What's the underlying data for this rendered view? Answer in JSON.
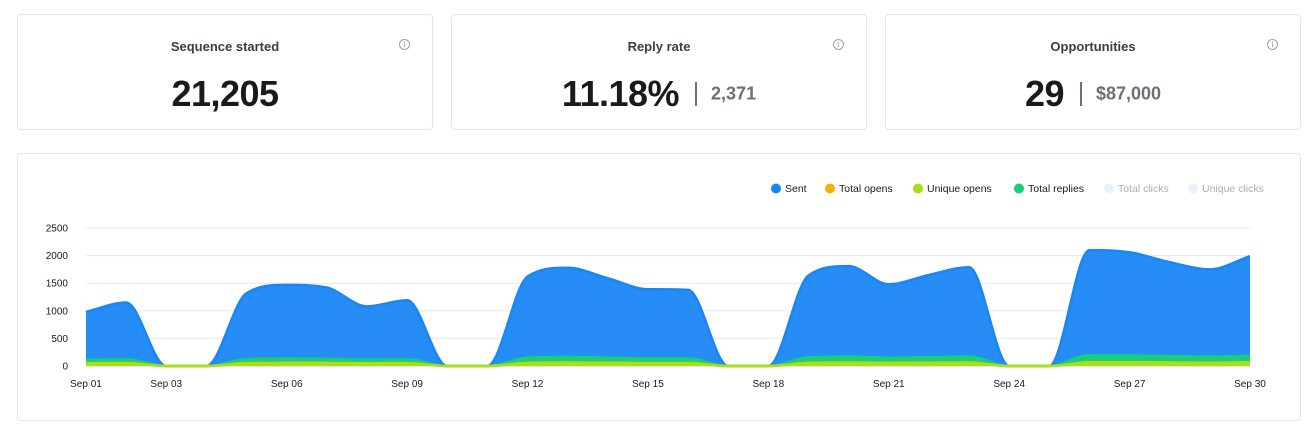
{
  "stats": [
    {
      "title": "Sequence started",
      "value": "21,205",
      "secondary": ""
    },
    {
      "title": "Reply rate",
      "value": "11.18%",
      "secondary": "2,371"
    },
    {
      "title": "Opportunities",
      "value": "29",
      "secondary": "$87,000"
    }
  ],
  "info_icon_glyph": "i",
  "chart_data": {
    "type": "area",
    "title": "",
    "xlabel": "",
    "ylabel": "",
    "ylim": [
      0,
      2500
    ],
    "yticks": [
      "0",
      "500",
      "1000",
      "1500",
      "2000",
      "2500"
    ],
    "x_tick_labels": [
      "Sep 01",
      "Sep 03",
      "Sep 06",
      "Sep 09",
      "Sep 12",
      "Sep 15",
      "Sep 18",
      "Sep 21",
      "Sep 24",
      "Sep 27",
      "Sep 30"
    ],
    "x_tick_days": [
      1,
      3,
      6,
      9,
      12,
      15,
      18,
      21,
      24,
      27,
      30
    ],
    "x_days": [
      1,
      2,
      3,
      4,
      5,
      6,
      7,
      8,
      9,
      10,
      11,
      12,
      13,
      14,
      15,
      16,
      17,
      18,
      19,
      20,
      21,
      22,
      23,
      24,
      25,
      26,
      27,
      28,
      29,
      30
    ],
    "grid": true,
    "legend_position": "top-right",
    "series": [
      {
        "name": "Sent",
        "color": "#1a86f5",
        "visible": true,
        "values": [
          980,
          1150,
          0,
          0,
          1320,
          1470,
          1420,
          1080,
          1190,
          0,
          0,
          1620,
          1780,
          1590,
          1390,
          1380,
          0,
          0,
          1640,
          1810,
          1480,
          1650,
          1790,
          0,
          0,
          2100,
          2060,
          1880,
          1750,
          1990
        ]
      },
      {
        "name": "Total opens",
        "color": "#f5b301",
        "visible": true,
        "values": [
          50,
          55,
          0,
          0,
          55,
          60,
          58,
          50,
          52,
          0,
          0,
          60,
          65,
          60,
          55,
          55,
          0,
          0,
          60,
          65,
          58,
          62,
          65,
          0,
          0,
          70,
          68,
          65,
          62,
          68
        ]
      },
      {
        "name": "Unique opens",
        "color": "#a6e01a",
        "visible": true,
        "values": [
          40,
          45,
          0,
          0,
          45,
          50,
          48,
          42,
          44,
          0,
          0,
          50,
          55,
          50,
          46,
          46,
          0,
          0,
          50,
          55,
          48,
          52,
          55,
          0,
          0,
          60,
          58,
          55,
          52,
          58
        ]
      },
      {
        "name": "Total replies",
        "color": "#16cf7a",
        "visible": true,
        "values": [
          110,
          120,
          0,
          0,
          125,
          135,
          130,
          115,
          120,
          0,
          0,
          150,
          165,
          150,
          135,
          135,
          0,
          0,
          155,
          170,
          150,
          160,
          170,
          0,
          0,
          195,
          190,
          180,
          170,
          185
        ]
      },
      {
        "name": "Total clicks",
        "color": "#e8f2fb",
        "visible": false,
        "values": []
      },
      {
        "name": "Unique clicks",
        "color": "#e8f2fb",
        "visible": false,
        "values": []
      }
    ]
  },
  "colors": {
    "grid": "#e6e8eb",
    "tick_text": "#1a1a1a",
    "legend_text": "#1a1a1a",
    "legend_text_disabled": "#a8adb4"
  }
}
